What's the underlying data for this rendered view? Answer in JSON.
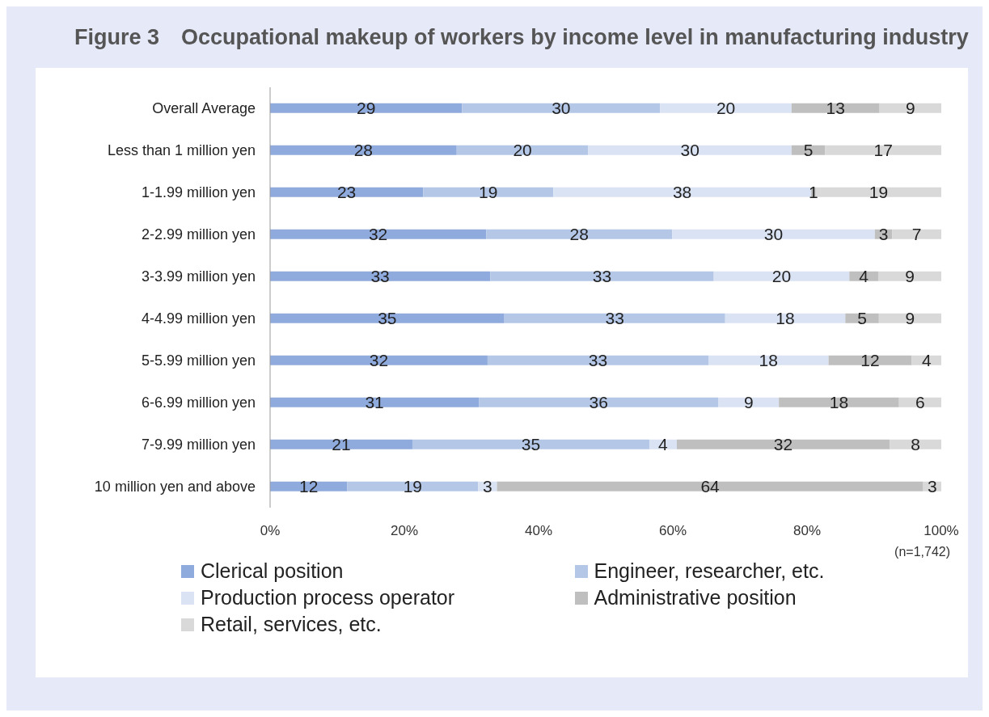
{
  "chart_data": {
    "type": "bar",
    "orientation": "horizontal",
    "stacked": true,
    "title": "Figure 3　Occupational makeup of workers by income level in manufacturing industry",
    "categories": [
      "Overall Average",
      "Less than 1 million yen",
      "1-1.99 million yen",
      "2-2.99 million yen",
      "3-3.99 million yen",
      "4-4.99 million yen",
      "5-5.99 million yen",
      "6-6.99 million yen",
      "7-9.99 million yen",
      "10 million yen and above"
    ],
    "series": [
      {
        "name": "Clerical position",
        "color": "#8faadc",
        "values": [
          28.6,
          27.8,
          22.8,
          32.2,
          32.8,
          34.9,
          32.4,
          31.1,
          21.2,
          11.5
        ],
        "value_labels": [
          "29",
          "28",
          "23",
          "32",
          "33",
          "35",
          "32",
          "31",
          "21",
          "12"
        ]
      },
      {
        "name": "Engineer, researcher, etc.",
        "color": "#b4c7e7",
        "values": [
          29.5,
          19.6,
          19.4,
          27.7,
          33.3,
          32.9,
          32.9,
          35.7,
          35.3,
          19.5
        ],
        "value_labels": [
          "30",
          "20",
          "19",
          "28",
          "33",
          "33",
          "33",
          "36",
          "35",
          "19"
        ]
      },
      {
        "name": "Production process operator",
        "color": "#dae3f3",
        "values": [
          19.6,
          30.3,
          38.4,
          30.2,
          20.2,
          17.9,
          17.9,
          9.0,
          4.1,
          2.8
        ],
        "value_labels": [
          "20",
          "30",
          "38",
          "30",
          "20",
          "18",
          "18",
          "9",
          "4",
          "3"
        ]
      },
      {
        "name": "Administrative position",
        "color": "#bfbfbf",
        "values": [
          13.1,
          5.0,
          0.7,
          2.6,
          4.3,
          5.0,
          12.4,
          17.9,
          31.7,
          63.5
        ],
        "value_labels": [
          "13",
          "5",
          "1",
          "3",
          "4",
          "5",
          "12",
          "18",
          "32",
          "64"
        ]
      },
      {
        "name": "Retail, services, etc.",
        "color": "#d9d9d9",
        "values": [
          9.2,
          17.3,
          18.7,
          7.3,
          9.4,
          9.3,
          4.4,
          6.3,
          7.7,
          2.7
        ],
        "value_labels": [
          "9",
          "17",
          "19",
          "7",
          "9",
          "9",
          "4",
          "6",
          "8",
          "3"
        ]
      }
    ],
    "xlim": [
      0,
      100
    ],
    "xticks": [
      {
        "value": 0,
        "label": "0%"
      },
      {
        "value": 20,
        "label": "20%"
      },
      {
        "value": 40,
        "label": "40%"
      },
      {
        "value": 60,
        "label": "60%"
      },
      {
        "value": 80,
        "label": "80%"
      },
      {
        "value": 100,
        "label": "100%"
      }
    ],
    "grid": false,
    "legend": "bottom",
    "annotations": [
      "(n=1,742)"
    ]
  }
}
